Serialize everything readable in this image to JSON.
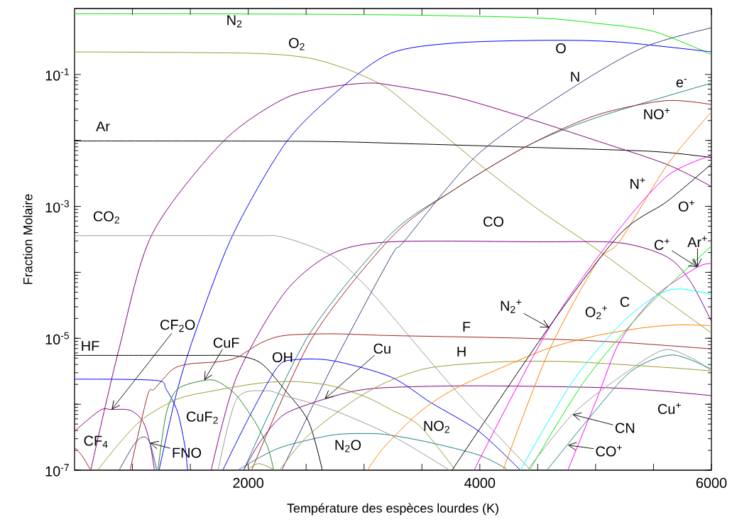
{
  "chart_data": {
    "type": "line",
    "xlabel": "Température des espèces lourdes (K)",
    "ylabel": "Fraction Molaire",
    "log": true,
    "xlim": [
      500,
      6000
    ],
    "ylim": [
      1e-07,
      1
    ],
    "xticks": [
      {
        "value": 1000,
        "label": null
      },
      {
        "value": 1500,
        "label": null
      },
      2000,
      {
        "value": 2500,
        "label": null
      },
      {
        "value": 3000,
        "label": null
      },
      {
        "value": 3500,
        "label": null
      },
      4000,
      {
        "value": 4500,
        "label": null
      },
      {
        "value": 5000,
        "label": null
      },
      {
        "value": 5500,
        "label": null
      },
      6000
    ],
    "yticks": [
      {
        "value": 1e-07,
        "label": "10$^{-7}$"
      },
      {
        "value": 1e-06,
        "label": null
      },
      {
        "value": 1e-05,
        "label": "10$^{-5}$"
      },
      {
        "value": 0.0001,
        "label": null
      },
      {
        "value": 0.001,
        "label": "10$^{-3}$"
      },
      {
        "value": 0.01,
        "label": null
      },
      {
        "value": 0.1,
        "label": "10$^{-1}$"
      }
    ],
    "series": [
      {
        "color": "#00ee00",
        "x": [
          500,
          1500,
          2500,
          3500,
          4500,
          5000,
          5500,
          6000
        ],
        "values": [
          0.83,
          0.83,
          0.82,
          0.79,
          0.72,
          0.6,
          0.45,
          0.2
        ]
      },
      {
        "color": "#999933",
        "x": [
          500,
          2000,
          2500,
          2800,
          3000,
          3200,
          3500,
          4000,
          4500,
          5000,
          5500,
          6000
        ],
        "values": [
          0.22,
          0.21,
          0.18,
          0.13,
          0.094,
          0.062,
          0.023,
          0.0043,
          0.00091,
          0.00023,
          5.2e-05,
          1.2e-05
        ]
      },
      {
        "color": "#0000ff",
        "x": [
          1230,
          1390,
          1560,
          1870,
          2330,
          2800,
          3230,
          3780,
          4600,
          5200,
          6000
        ],
        "values": [
          1e-07,
          1.7e-06,
          1.5e-05,
          0.00038,
          0.0095,
          0.062,
          0.21,
          0.3,
          0.33,
          0.31,
          0.22
        ]
      },
      {
        "color": "#000000",
        "x": [
          500,
          2500,
          3500,
          4500,
          5500,
          6000
        ],
        "values": [
          0.0098,
          0.0097,
          0.0088,
          0.0078,
          0.0068,
          0.0055
        ]
      },
      {
        "color": "#800080",
        "x": [
          640,
          885,
          1170,
          1780,
          2310,
          2720,
          3030,
          3230,
          3780,
          4400,
          5000,
          5620,
          6000
        ],
        "values": [
          1e-07,
          7e-06,
          0.00038,
          0.0095,
          0.043,
          0.065,
          0.074,
          0.069,
          0.046,
          0.022,
          0.01,
          0.0043,
          0.002
        ]
      },
      {
        "color": "#999999",
        "x": [
          500,
          2000,
          2300,
          2720,
          3000,
          3230,
          3780,
          4440
        ],
        "values": [
          0.00036,
          0.00036,
          0.00034,
          0.00018,
          6.6e-05,
          2.3e-05,
          1.7e-06,
          1e-07
        ]
      },
      {
        "color": "#800080",
        "x": [
          1680,
          1900,
          2310,
          2720,
          3230,
          4500,
          5210,
          5620,
          5820,
          6000
        ],
        "values": [
          1e-07,
          2.6e-06,
          4.8e-05,
          0.00019,
          0.00029,
          0.00029,
          0.00028,
          0.00017,
          7.2e-05,
          1.8e-05
        ]
      },
      {
        "color": "#404080",
        "x": [
          2290,
          2720,
          3230,
          3350,
          3990,
          4820,
          5420,
          6000
        ],
        "values": [
          1e-07,
          3.6e-06,
          0.00017,
          0.0003,
          0.0063,
          0.066,
          0.26,
          0.51
        ]
      },
      {
        "color": "#208080",
        "x": [
          1960,
          2520,
          3230,
          3780,
          4400,
          5000,
          6000
        ],
        "values": [
          1e-07,
          1.1e-05,
          0.00038,
          0.0018,
          0.0081,
          0.022,
          0.074
        ]
      },
      {
        "color": "#a02020",
        "x": [
          2030,
          2550,
          3250,
          3780,
          4400,
          5000,
          5600,
          6000
        ],
        "values": [
          1e-07,
          1e-05,
          0.00036,
          0.0018,
          0.0081,
          0.024,
          0.04,
          0.035
        ]
      },
      {
        "color": "#208080",
        "x": [
          1910,
          2110,
          2310,
          2720,
          3030,
          3230,
          3580,
          3990,
          4230
        ],
        "values": [
          1e-07,
          1.6e-07,
          2.3e-07,
          3.4e-07,
          3.6e-07,
          3.4e-07,
          2.6e-07,
          1.7e-07,
          1.05e-07
        ]
      },
      {
        "color": "#000000",
        "x": [
          500,
          1500,
          1900,
          2110,
          2310,
          2520,
          2640
        ],
        "values": [
          5.5e-06,
          5.5e-06,
          5.4e-06,
          4.2e-06,
          1.7e-06,
          5.5e-07,
          1e-07
        ]
      },
      {
        "color": "#a02020",
        "x": [
          980,
          1130,
          1190,
          1350,
          1500,
          1740,
          1900,
          2110,
          2310,
          2720,
          3230,
          4400,
          5210,
          6000
        ],
        "values": [
          1e-07,
          1.35e-06,
          1.7e-06,
          3.4e-06,
          4.1e-06,
          4.4e-06,
          5.1e-06,
          8.5e-06,
          1.1e-05,
          1.17e-05,
          1.1e-05,
          1e-05,
          8.7e-06,
          6.9e-06
        ]
      },
      {
        "color": "#a02020",
        "x": [
          500,
          560,
          640
        ],
        "values": [
          2.2e-07,
          1.7e-07,
          1e-07
        ]
      },
      {
        "color": "#800080",
        "x": [
          500,
          720,
          820,
          980,
          1090,
          1150,
          1190
        ],
        "values": [
          3.9e-07,
          8.1e-07,
          8.3e-07,
          8.1e-07,
          5.5e-07,
          2.6e-07,
          1e-07
        ]
      },
      {
        "color": "#0000ff",
        "x": [
          500,
          1200,
          1290,
          1390,
          1455,
          1475
        ],
        "values": [
          2.4e-06,
          2.3e-06,
          1.7e-06,
          7.6e-07,
          2.2e-07,
          1e-07
        ]
      },
      {
        "color": "#404080",
        "x": [
          885,
          1010,
          1090,
          1150,
          1210
        ],
        "values": [
          1e-07,
          2.4e-07,
          3.2e-07,
          2.6e-07,
          1e-07
        ]
      },
      {
        "color": "#228b22",
        "x": [
          1220,
          1290,
          1390,
          1620,
          1740,
          1900,
          2070,
          2170,
          2220
        ],
        "values": [
          1e-07,
          7e-07,
          1.7e-06,
          2.3e-06,
          2.2e-06,
          1.35e-06,
          5e-07,
          2.2e-07,
          1e-07
        ]
      },
      {
        "color": "#999933",
        "x": [
          700,
          890,
          1090,
          1390,
          1700,
          2110,
          2420,
          2720,
          3030,
          3230,
          3480,
          3780
        ],
        "values": [
          1e-07,
          2.6e-07,
          6e-07,
          1.2e-06,
          1.6e-06,
          2.1e-06,
          2.2e-06,
          1.9e-06,
          1.26e-06,
          8.3e-07,
          4.7e-07,
          1.05e-07
        ]
      },
      {
        "color": "#999933",
        "x": [
          1990,
          2090,
          2230
        ],
        "values": [
          1e-07,
          1.26e-07,
          1e-07
        ]
      },
      {
        "color": "#999999",
        "x": [
          1740,
          1900,
          2150,
          2310,
          2720,
          3230,
          3740
        ],
        "values": [
          1e-07,
          1.2e-06,
          1.6e-06,
          1.35e-06,
          8.3e-07,
          3.4e-07,
          1e-07
        ]
      },
      {
        "color": "#800080",
        "x": [
          1960,
          2110,
          2310,
          2660,
          2930,
          3230,
          3990,
          5210,
          6000
        ],
        "values": [
          1e-07,
          2.8e-07,
          7e-07,
          1.2e-06,
          1.6e-06,
          1.8e-06,
          1.9e-06,
          1.75e-06,
          1.35e-06
        ]
      },
      {
        "color": "#0000ff",
        "x": [
          1780,
          2010,
          2250,
          2390,
          2720,
          3230,
          3580,
          3990,
          4350
        ],
        "values": [
          1e-07,
          6.5e-07,
          3.6e-06,
          4.7e-06,
          4.6e-06,
          2.6e-06,
          1.05e-06,
          3.9e-07,
          1e-07
        ]
      },
      {
        "color": "#999933",
        "x": [
          2270,
          2520,
          2930,
          3230,
          3580,
          4190,
          4800,
          5620,
          6000
        ],
        "values": [
          1e-07,
          3.4e-07,
          1.2e-06,
          2.3e-06,
          3.6e-06,
          4.4e-06,
          4.4e-06,
          3.6e-06,
          3.2e-06
        ]
      },
      {
        "color": "#ff7f00",
        "x": [
          3030,
          3170,
          3480,
          3780,
          4190,
          4600,
          5010,
          5420,
          5720,
          6000
        ],
        "values": [
          1e-07,
          2.2e-07,
          7.6e-07,
          1.7e-06,
          3.6e-06,
          7.1e-06,
          1.1e-05,
          1.45e-05,
          1.6e-05,
          1.55e-05
        ]
      },
      {
        "color": "#ff7f00",
        "x": [
          4200,
          4600,
          5010,
          5210,
          5620,
          6000
        ],
        "values": [
          1e-07,
          6.6e-06,
          0.00014,
          0.0003,
          0.0043,
          0.027
        ]
      },
      {
        "color": "#ff00ff",
        "x": [
          3950,
          4600,
          5170,
          5620,
          6000
        ],
        "values": [
          1e-07,
          1.45e-05,
          0.00038,
          0.0029,
          0.0059
        ]
      },
      {
        "color": "#ff00ff",
        "x": [
          4760,
          5010,
          5210,
          5520,
          5880,
          6000
        ],
        "values": [
          1e-07,
          1.2e-06,
          9e-06,
          4.4e-05,
          0.00012,
          0.000135
        ]
      },
      {
        "color": "#000000",
        "x": [
          3760,
          4600,
          5210,
          5620,
          6000
        ],
        "values": [
          1e-07,
          1.5e-05,
          0.00038,
          0.0012,
          0.0044
        ]
      },
      {
        "color": "#00ffff",
        "x": [
          4350,
          4800,
          5210,
          5520,
          5720,
          6000
        ],
        "values": [
          1e-07,
          2.2e-06,
          1.6e-05,
          4.4e-05,
          5.6e-05,
          4.6e-05
        ]
      },
      {
        "color": "#00ee00",
        "x": [
          4430,
          4900,
          5420,
          6000
        ],
        "values": [
          1e-07,
          2.2e-06,
          2.7e-05,
          0.00025
        ]
      },
      {
        "color": "#999999",
        "x": [
          4410,
          4800,
          5210,
          5580,
          5820,
          6000
        ],
        "values": [
          1e-07,
          7e-07,
          2.6e-06,
          6.6e-06,
          5.1e-06,
          3.2e-06
        ]
      },
      {
        "color": "#208080",
        "x": [
          4580,
          4970,
          5310,
          5660,
          6000
        ],
        "values": [
          1e-07,
          7e-07,
          3.2e-06,
          5.6e-06,
          3.4e-06
        ]
      }
    ],
    "annotations": [
      "N$_{2}$",
      "O$_{2}$",
      "O",
      "N",
      "e$^{-}$",
      "NO$^{+}$",
      "Ar",
      "N$^{+}$",
      "O$^{+}$",
      "CO$_{2}$",
      "CO",
      {
        "text": "C$^{+}$",
        "x": 5880,
        "y": 0.00012
      },
      {
        "text": "Ar$^{+}$",
        "x": 5880,
        "y": 0.00012
      },
      {
        "text": "N$_{2}$$^{+}$",
        "x": 4600,
        "y": 1.45e-05
      },
      "O$_{2}$$^{+}$",
      "C",
      "F",
      "H",
      "HF",
      {
        "text": "CF$_{2}$O",
        "x": 820,
        "y": 8.3e-07
      },
      {
        "text": "CuF",
        "x": 1620,
        "y": 2.3e-06
      },
      "OH",
      {
        "text": "Cu",
        "x": 2660,
        "y": 1.2e-06
      },
      "CuF$_{2}$",
      "CF$_{4}$",
      {
        "text": "FNO",
        "x": 1150,
        "y": 2.6e-07
      },
      "N$_{2}$O",
      "NO$_{2}$",
      "Cu$^{+}$",
      {
        "text": "CN",
        "x": 4800,
        "y": 7e-07
      },
      {
        "text": "CO$^{+}$",
        "x": 4760,
        "y": 2.4e-07
      }
    ]
  }
}
